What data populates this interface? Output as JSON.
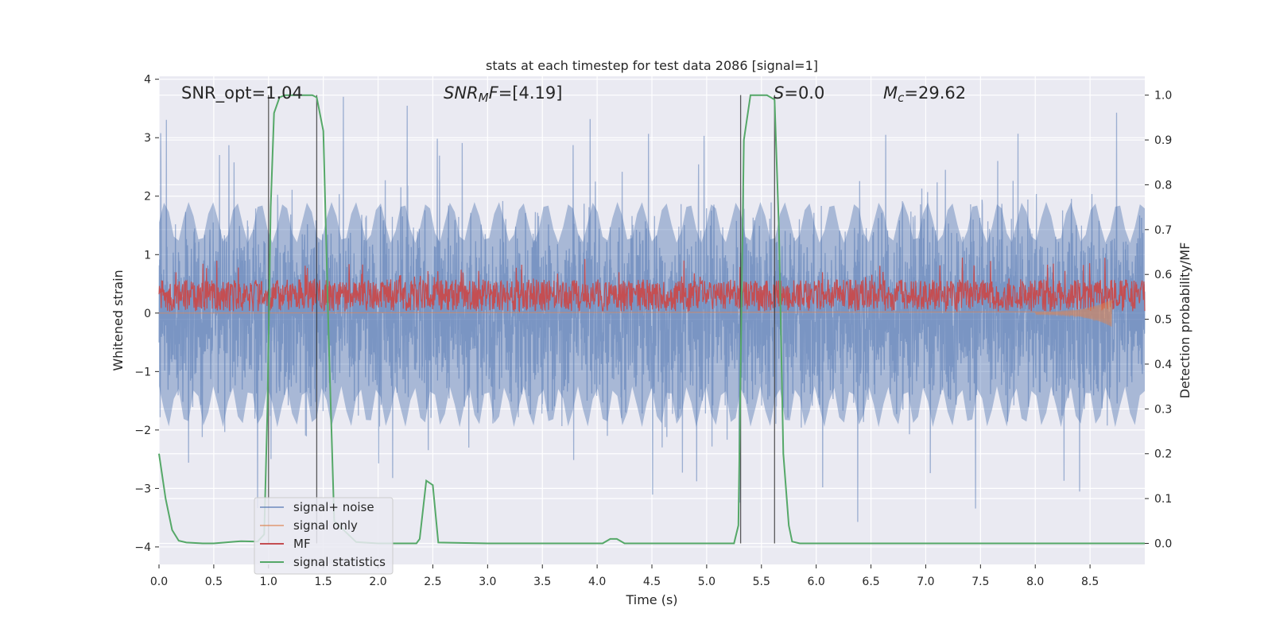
{
  "chart_data": {
    "type": "line",
    "title": "stats at each timestep for test data 2086 [signal=1]",
    "xlabel": "Time (s)",
    "ylabel": "Whitened strain",
    "y2label": "Detection probability/MF",
    "xlim": [
      0,
      9
    ],
    "ylim": [
      -4.3,
      4.05
    ],
    "y2lim": [
      -0.047,
      1.042
    ],
    "x_ticks": [
      "0.0",
      "0.5",
      "1.0",
      "1.5",
      "2.0",
      "2.5",
      "3.0",
      "3.5",
      "4.0",
      "4.5",
      "5.0",
      "5.5",
      "6.0",
      "6.5",
      "7.0",
      "7.5",
      "8.0",
      "8.5"
    ],
    "y_ticks": [
      "4",
      "3",
      "2",
      "1",
      "0",
      "−1",
      "−2",
      "−3",
      "−4"
    ],
    "y2_ticks": [
      "1.0",
      "0.9",
      "0.8",
      "0.7",
      "0.6",
      "0.5",
      "0.4",
      "0.3",
      "0.2",
      "0.1",
      "0.0"
    ],
    "grid": true,
    "legend_position": "lower-left",
    "annotations": {
      "snr_opt": "SNR_opt=1.04",
      "snr_mf_sym": "SNR",
      "snr_mf_sub": "M",
      "snr_mf_sym2": "F",
      "snr_mf_val": "=[4.19]",
      "s_sym": "S",
      "s_val": "=0.0",
      "mc_sym": "M",
      "mc_sub": "c",
      "mc_val": "=29.62"
    },
    "vertical_markers_s": [
      1.0,
      1.44,
      5.31,
      5.62
    ],
    "series": [
      {
        "name": "signal+ noise",
        "color": "#4c72b0",
        "note": "dense whitened noise band roughly within ±2.2 with spikes to ±3.7",
        "range": [
          -3.9,
          3.7
        ]
      },
      {
        "name": "signal only",
        "color": "#dd8452",
        "note": "near-zero chirp growing toward merger",
        "x": [
          0.0,
          8.0,
          8.5,
          8.62,
          8.7
        ],
        "y": [
          0.0,
          0.02,
          0.05,
          -0.2,
          0.0
        ]
      },
      {
        "name": "MF",
        "color": "#c44e52",
        "note": "matched-filter output fluctuating between 0.0 and 0.9 on the strain axis",
        "range": [
          0.0,
          0.95
        ]
      },
      {
        "name": "signal statistics",
        "color": "#55a868",
        "x": [
          0.0,
          0.06,
          0.12,
          0.18,
          0.25,
          0.4,
          0.5,
          0.7,
          0.75,
          0.9,
          0.96,
          0.99,
          1.02,
          1.05,
          1.1,
          1.15,
          1.4,
          1.44,
          1.5,
          1.55,
          1.6,
          1.8,
          2.0,
          2.35,
          2.38,
          2.44,
          2.5,
          2.55,
          3.0,
          4.05,
          4.12,
          4.18,
          4.25,
          5.25,
          5.29,
          5.34,
          5.4,
          5.55,
          5.62,
          5.66,
          5.7,
          5.75,
          5.78,
          5.85,
          9.0
        ],
        "y": [
          0.2,
          0.1,
          0.03,
          0.006,
          0.002,
          0.0,
          0.0,
          0.004,
          0.005,
          0.004,
          0.02,
          0.3,
          0.75,
          0.96,
          0.995,
          1.0,
          1.0,
          0.995,
          0.92,
          0.45,
          0.05,
          0.003,
          0.0,
          0.0,
          0.01,
          0.14,
          0.13,
          0.002,
          0.0,
          0.0,
          0.01,
          0.01,
          0.0,
          0.0,
          0.04,
          0.9,
          1.0,
          1.0,
          0.99,
          0.7,
          0.2,
          0.04,
          0.004,
          0.0,
          0.0
        ]
      }
    ]
  },
  "legend": {
    "items": [
      "signal+ noise",
      "signal only",
      "MF",
      "signal statistics"
    ],
    "colors": [
      "#4c72b0",
      "#dd8452",
      "#c44e52",
      "#55a868"
    ]
  }
}
